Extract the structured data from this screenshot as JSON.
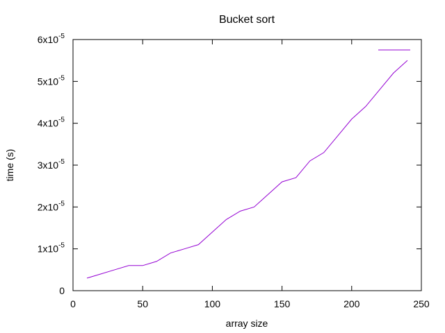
{
  "chart_data": {
    "type": "line",
    "title": "Bucket sort",
    "xlabel": "array size",
    "ylabel": "time (s)",
    "xlim": [
      0,
      250
    ],
    "ylim": [
      0,
      6e-05
    ],
    "x_ticks": [
      0,
      50,
      100,
      150,
      200,
      250
    ],
    "x_tick_labels": [
      "0",
      "50",
      "100",
      "150",
      "200",
      "250"
    ],
    "y_ticks": [
      0,
      1e-05,
      2e-05,
      3e-05,
      4e-05,
      5e-05,
      6e-05
    ],
    "y_tick_labels": [
      {
        "mantissa": "0",
        "exponent": ""
      },
      {
        "mantissa": "1x10",
        "exponent": "-5"
      },
      {
        "mantissa": "2x10",
        "exponent": "-5"
      },
      {
        "mantissa": "3x10",
        "exponent": "-5"
      },
      {
        "mantissa": "4x10",
        "exponent": "-5"
      },
      {
        "mantissa": "5x10",
        "exponent": "-5"
      },
      {
        "mantissa": "6x10",
        "exponent": "-5"
      }
    ],
    "grid": false,
    "legend_position": "top-right",
    "series": [
      {
        "name": "",
        "color": "#9400d3",
        "x": [
          10,
          20,
          30,
          40,
          50,
          60,
          70,
          80,
          90,
          100,
          110,
          120,
          130,
          140,
          150,
          160,
          170,
          180,
          190,
          200,
          210,
          220,
          230,
          240
        ],
        "y": [
          3e-06,
          4e-06,
          5e-06,
          6e-06,
          6e-06,
          7e-06,
          9e-06,
          1e-05,
          1.1e-05,
          1.4e-05,
          1.7e-05,
          1.9e-05,
          2e-05,
          2.3e-05,
          2.6e-05,
          2.7e-05,
          3.1e-05,
          3.3e-05,
          3.7e-05,
          4.1e-05,
          4.4e-05,
          4.8e-05,
          5.2e-05,
          5.5e-05
        ]
      }
    ]
  }
}
